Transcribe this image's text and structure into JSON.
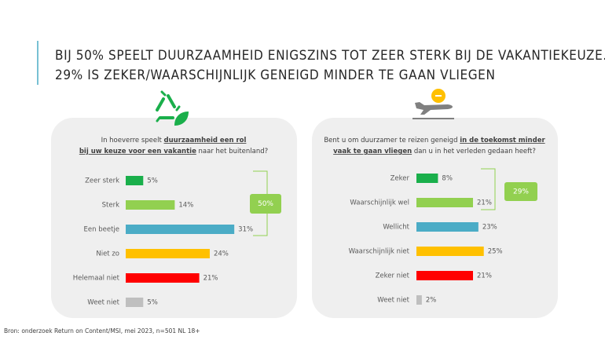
{
  "title_lines": [
    "BIJ 50% SPEELT DUURZAAMHEID ENIGSZINS TOT ZEER STERK BIJ DE VAKANTIEKEUZE.",
    "29% IS ZEKER/WAARSCHIJNLIJK GENEIGD MINDER TE GAAN VLIEGEN"
  ],
  "source": "Bron: onderzoek Return on Content/MSI, mei 2023, n=501 NL 18+",
  "chart_data": [
    {
      "type": "bar",
      "orientation": "horizontal",
      "question_lines": [
        [
          {
            "text": "In hoeverre speelt ",
            "bold": false
          },
          {
            "text": "duurzaamheid een rol",
            "bold": true
          }
        ],
        [
          {
            "text": "bij uw keuze voor een vakantie",
            "bold": true
          },
          {
            "text": " naar het buitenland?",
            "bold": false
          }
        ]
      ],
      "categories": [
        "Zeer sterk",
        "Sterk",
        "Een beetje",
        "Niet zo",
        "Helemaal niet",
        "Weet niet"
      ],
      "values": [
        5,
        14,
        31,
        24,
        21,
        5
      ],
      "value_labels": [
        "5%",
        "14%",
        "31%",
        "24%",
        "21%",
        "5%"
      ],
      "colors": [
        "#1aaf4b",
        "#92d050",
        "#4bacc6",
        "#ffc000",
        "#ff0000",
        "#bfbfbf"
      ],
      "xlim": [
        0,
        35
      ],
      "annotation": "50%"
    },
    {
      "type": "bar",
      "orientation": "horizontal",
      "question_lines": [
        [
          {
            "text": "Bent u om duurzamer te reizen geneigd ",
            "bold": false
          },
          {
            "text": "in de toekomst minder",
            "bold": true
          }
        ],
        [
          {
            "text": "vaak te gaan vliegen",
            "bold": true
          },
          {
            "text": " dan u in het verleden gedaan heeft?",
            "bold": false
          }
        ]
      ],
      "categories": [
        "Zeker",
        "Waarschijnlijk wel",
        "Wellicht",
        "Waarschijnlijk niet",
        "Zeker niet",
        "Weet niet"
      ],
      "values": [
        8,
        21,
        23,
        25,
        21,
        2
      ],
      "value_labels": [
        "8%",
        "21%",
        "23%",
        "25%",
        "21%",
        "2%"
      ],
      "colors": [
        "#1aaf4b",
        "#92d050",
        "#4bacc6",
        "#ffc000",
        "#ff0000",
        "#bfbfbf"
      ],
      "xlim": [
        0,
        35
      ],
      "annotation": "29%"
    }
  ]
}
